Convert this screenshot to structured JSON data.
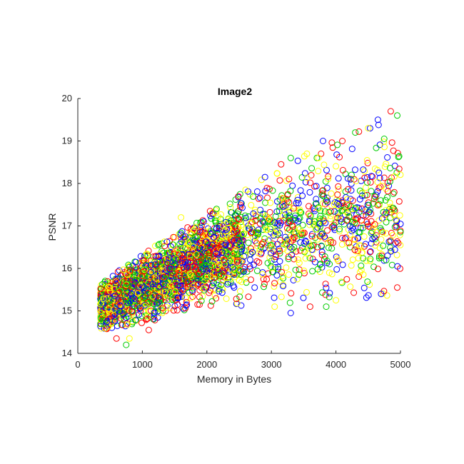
{
  "chart_data": {
    "type": "scatter",
    "title": "Image2",
    "xlabel": "Memory in Bytes",
    "ylabel": "PSNR",
    "xlim": [
      0,
      5000
    ],
    "ylim": [
      14,
      20
    ],
    "xticks": [
      0,
      1000,
      2000,
      3000,
      4000,
      5000
    ],
    "xtick_labels": [
      "0",
      "1000",
      "2000",
      "3000",
      "4000",
      "5000"
    ],
    "yticks": [
      14,
      15,
      16,
      17,
      18,
      19,
      20
    ],
    "ytick_labels": [
      "14",
      "15",
      "16",
      "17",
      "18",
      "19",
      "20"
    ],
    "grid": false,
    "legend": "none",
    "marker": "open-circle",
    "series_colors": [
      "#0000ff",
      "#ff0000",
      "#00cc00",
      "#ffff00"
    ],
    "trend": {
      "x": [
        400,
        1000,
        2000,
        3000,
        4000,
        5000
      ],
      "y_center": [
        15.1,
        15.55,
        16.25,
        16.8,
        17.15,
        17.35
      ],
      "y_low": [
        14.55,
        14.7,
        15.1,
        15.1,
        15.2,
        15.4
      ],
      "y_high": [
        15.7,
        16.35,
        17.25,
        18.25,
        19.05,
        19.65
      ]
    },
    "sample_points": [
      [
        450,
        14.75
      ],
      [
        600,
        14.35
      ],
      [
        750,
        14.2
      ],
      [
        800,
        14.35
      ],
      [
        900,
        16.15
      ],
      [
        1100,
        14.55
      ],
      [
        1250,
        16.55
      ],
      [
        1600,
        17.2
      ],
      [
        1950,
        17.1
      ],
      [
        2050,
        17.35
      ],
      [
        2150,
        17.4
      ],
      [
        2600,
        17.85
      ],
      [
        2900,
        18.15
      ],
      [
        3150,
        18.45
      ],
      [
        3300,
        18.6
      ],
      [
        3550,
        18.7
      ],
      [
        3800,
        19.0
      ],
      [
        4100,
        19.0
      ],
      [
        4300,
        19.2
      ],
      [
        4500,
        19.3
      ],
      [
        4650,
        19.5
      ],
      [
        4850,
        19.7
      ],
      [
        4950,
        19.6
      ],
      [
        3050,
        15.1
      ],
      [
        3300,
        14.95
      ],
      [
        3600,
        15.1
      ],
      [
        3850,
        15.1
      ],
      [
        4000,
        15.25
      ],
      [
        4700,
        15.4
      ],
      [
        4950,
        15.55
      ],
      [
        4600,
        17.7
      ],
      [
        4900,
        17.25
      ],
      [
        4800,
        16.3
      ],
      [
        4200,
        16.6
      ],
      [
        3900,
        16.1
      ]
    ]
  }
}
